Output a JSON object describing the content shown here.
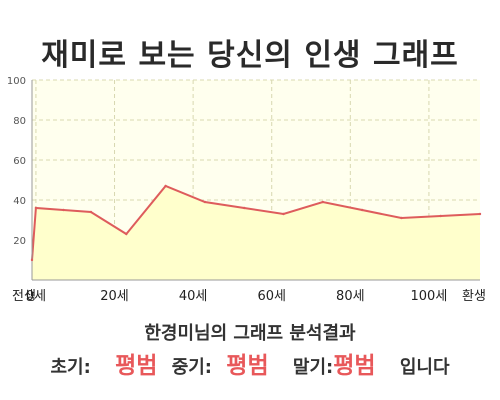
{
  "header": {
    "title": "재미로 보는 당신의 인생 그래프"
  },
  "chart_data": {
    "type": "area",
    "title": "재미로 보는 당신의 인생 그래프",
    "x_tick_labels": [
      "전생",
      "0세",
      "20세",
      "40세",
      "60세",
      "80세",
      "100세",
      "환생"
    ],
    "y_ticks": [
      20,
      40,
      60,
      80,
      100
    ],
    "ylim": [
      0,
      100
    ],
    "points": [
      {
        "x": -1,
        "y": 10
      },
      {
        "x": 0,
        "y": 36
      },
      {
        "x": 7,
        "y": 35
      },
      {
        "x": 14,
        "y": 34
      },
      {
        "x": 23,
        "y": 23
      },
      {
        "x": 33,
        "y": 47
      },
      {
        "x": 43,
        "y": 39
      },
      {
        "x": 53,
        "y": 36
      },
      {
        "x": 63,
        "y": 33
      },
      {
        "x": 73,
        "y": 39
      },
      {
        "x": 83,
        "y": 35
      },
      {
        "x": 93,
        "y": 31
      },
      {
        "x": 103,
        "y": 32
      },
      {
        "x": 113,
        "y": 33
      }
    ],
    "grid": true,
    "colors": {
      "line": "#de5c5c",
      "fill": "#ffffcc",
      "grid": "#d8d8b0"
    }
  },
  "result": {
    "title": "한경미님의 그래프 분석결과",
    "early_label": "초기:",
    "early_value": "평범",
    "mid_label": "중기:",
    "mid_value": "평범",
    "late_label": "말기:",
    "late_value": "평범",
    "suffix": "입니다"
  }
}
